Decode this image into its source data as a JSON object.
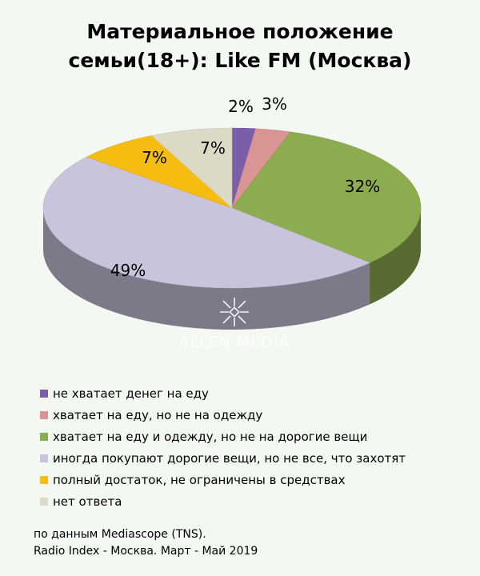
{
  "title": {
    "line1": "Материальное положение",
    "line2": "семьи(18+): Like FM (Москва)"
  },
  "watermark": {
    "text": "ALLEN MEDIA"
  },
  "chart_data": {
    "type": "pie",
    "title": "Материальное положение семьи(18+): Like FM (Москва)",
    "slices": [
      {
        "label": "не хватает денег на еду",
        "value": 2,
        "display": "2%",
        "color": "#7b5ea8"
      },
      {
        "label": "хватает на еду, но не на одежду",
        "value": 3,
        "display": "3%",
        "color": "#d99494"
      },
      {
        "label": "хватает на еду и одежду, но не на дорогие вещи",
        "value": 32,
        "display": "32%",
        "color": "#8cac50"
      },
      {
        "label": "иногда покупают дорогие вещи, но не все, что захотят",
        "value": 49,
        "display": "49%",
        "color": "#c9c3dc"
      },
      {
        "label": "полный достаток, не ограничены в средствах",
        "value": 7,
        "display": "7%",
        "color": "#f5bd12"
      },
      {
        "label": "нет ответа",
        "value": 7,
        "display": "7%",
        "color": "#dcdac6"
      }
    ],
    "legend_position": "bottom-left"
  },
  "legend": {
    "items": [
      "не хватает денег на еду",
      "хватает на еду, но не на одежду",
      "хватает на еду и одежду, но не на дорогие вещи",
      "иногда покупают дорогие вещи, но не все, что захотят",
      "полный достаток, не ограничены в средствах",
      "нет ответа"
    ]
  },
  "source": {
    "line1": "по данным Mediascope (TNS).",
    "line2": "Radio Index - Москва. Март - Май 2019"
  }
}
